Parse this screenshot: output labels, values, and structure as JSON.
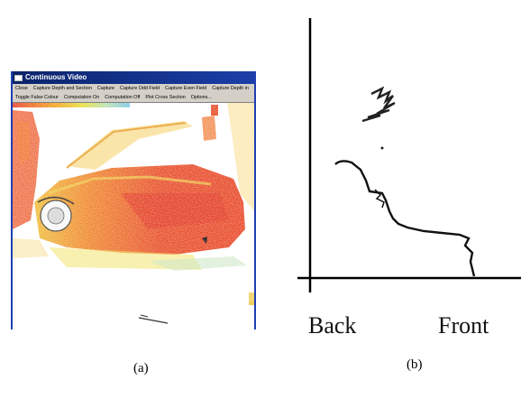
{
  "panel_a": {
    "caption": "(a)",
    "window": {
      "title": "Continuous Video",
      "menu_row_1": [
        "Close",
        "Capture Depth and Section",
        "Capture",
        "Capture Odd Field",
        "Capture Even Field",
        "Capture Depth in"
      ],
      "menu_row_2": [
        "Toggle False Colour",
        "Computation On",
        "Computation Off",
        "Plot Cross Section",
        "Options..."
      ]
    },
    "colors": {
      "title_bar": "#0a246a",
      "menu_bg": "#d4d0c8",
      "depth_near": "#e8402a",
      "depth_mid": "#f4a020",
      "depth_far": "#e8e040",
      "depth_farthest": "#7cc8e8"
    }
  },
  "panel_b": {
    "caption": "(b)",
    "x_label_left": "Back",
    "x_label_right": "Front"
  }
}
